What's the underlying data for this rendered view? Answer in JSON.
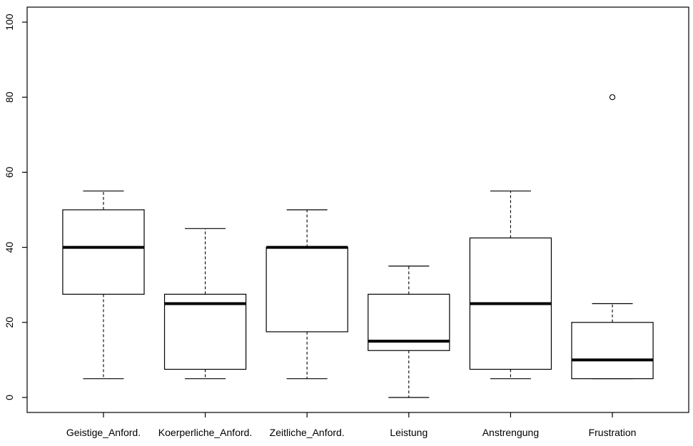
{
  "chart_data": {
    "type": "boxplot",
    "title": "",
    "xlabel": "",
    "ylabel": "",
    "ylim": [
      -4,
      104
    ],
    "yticks": [
      "0",
      "20",
      "40",
      "60",
      "80",
      "100"
    ],
    "categories": [
      "Geistige_Anford.",
      "Koerperliche_Anford.",
      "Zeitliche_Anford.",
      "Leistung",
      "Anstrengung",
      "Frustration"
    ],
    "boxes": [
      {
        "min": 5,
        "q1": 27.5,
        "median": 40,
        "q3": 50,
        "max": 55,
        "outliers": []
      },
      {
        "min": 5,
        "q1": 7.5,
        "median": 25,
        "q3": 27.5,
        "max": 45,
        "outliers": []
      },
      {
        "min": 5,
        "q1": 17.5,
        "median": 40,
        "q3": 40,
        "max": 50,
        "outliers": []
      },
      {
        "min": 0,
        "q1": 12.5,
        "median": 15,
        "q3": 27.5,
        "max": 35,
        "outliers": []
      },
      {
        "min": 5,
        "q1": 7.5,
        "median": 25,
        "q3": 42.5,
        "max": 55,
        "outliers": []
      },
      {
        "min": 5,
        "q1": 5,
        "median": 10,
        "q3": 20,
        "max": 25,
        "outliers": [
          80
        ]
      }
    ],
    "grid": false,
    "legend": "none"
  }
}
